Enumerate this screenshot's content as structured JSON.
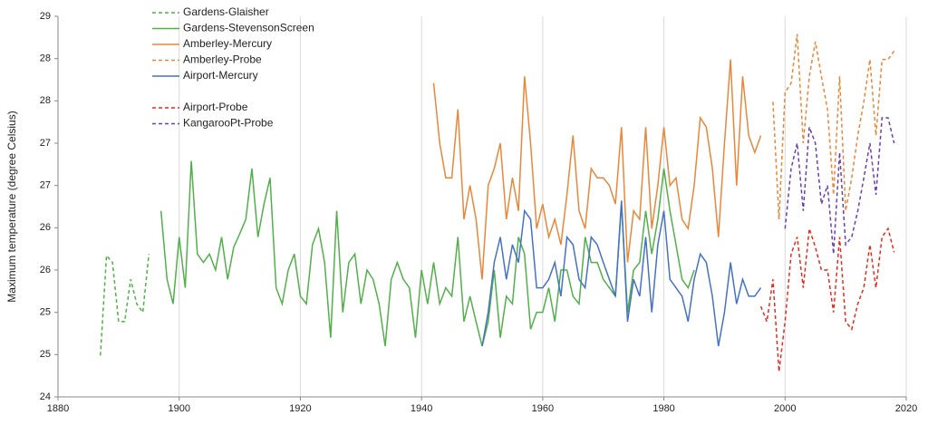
{
  "chart_data": {
    "type": "line",
    "y_label": "Maximum temperature (degree Celsius)",
    "xlim": [
      1880,
      2020
    ],
    "xticks": [
      1880,
      1900,
      1920,
      1940,
      1960,
      1980,
      2000,
      2020
    ],
    "ylim": [
      24,
      28.5
    ],
    "yticks": [
      {
        "value": 24,
        "label": "24"
      },
      {
        "value": 24.5,
        "label": "25"
      },
      {
        "value": 25,
        "label": "25"
      },
      {
        "value": 25.5,
        "label": "26"
      },
      {
        "value": 26,
        "label": "26"
      },
      {
        "value": 26.5,
        "label": "27"
      },
      {
        "value": 27,
        "label": "27"
      },
      {
        "value": 27.5,
        "label": "28"
      },
      {
        "value": 28,
        "label": "28"
      },
      {
        "value": 28.5,
        "label": "29"
      }
    ],
    "grid": true,
    "legend": "upper-left",
    "series": [
      {
        "name": "Gardens-Glaisher",
        "color": "#52b04a",
        "dashed": true,
        "x": [
          1887,
          1888,
          1889,
          1890,
          1891,
          1892,
          1893,
          1894,
          1895
        ],
        "values": [
          24.49,
          25.67,
          25.59,
          24.89,
          24.89,
          25.39,
          25.1,
          25.0,
          25.69
        ]
      },
      {
        "name": "Gardens-StevensonScreen",
        "color": "#52b04a",
        "dashed": false,
        "x": [
          1897,
          1898,
          1899,
          1900,
          1901,
          1902,
          1903,
          1904,
          1905,
          1906,
          1907,
          1908,
          1909,
          1910,
          1911,
          1912,
          1913,
          1914,
          1915,
          1916,
          1917,
          1918,
          1919,
          1920,
          1921,
          1922,
          1923,
          1924,
          1925,
          1926,
          1927,
          1928,
          1929,
          1930,
          1931,
          1932,
          1933,
          1934,
          1935,
          1936,
          1937,
          1938,
          1939,
          1940,
          1941,
          1942,
          1943,
          1944,
          1945,
          1946,
          1947,
          1948,
          1949,
          1950,
          1951,
          1952,
          1953,
          1954,
          1955,
          1956,
          1957,
          1958,
          1959,
          1960,
          1961,
          1962,
          1963,
          1964,
          1965,
          1966,
          1967,
          1968,
          1969,
          1970,
          1971,
          1972,
          1973,
          1974,
          1975,
          1976,
          1977,
          1978,
          1979,
          1980,
          1981,
          1982,
          1983,
          1984,
          1985
        ],
        "values": [
          26.2,
          25.39,
          25.1,
          25.89,
          25.29,
          26.79,
          25.69,
          25.59,
          25.69,
          25.5,
          25.89,
          25.39,
          25.77,
          25.93,
          26.1,
          26.7,
          25.89,
          26.28,
          26.59,
          25.29,
          25.1,
          25.5,
          25.69,
          25.19,
          25.1,
          25.8,
          25.99,
          25.59,
          24.7,
          26.2,
          25.0,
          25.59,
          25.69,
          25.1,
          25.5,
          25.39,
          25.1,
          24.6,
          25.39,
          25.59,
          25.39,
          25.29,
          24.7,
          25.5,
          25.1,
          25.59,
          25.1,
          25.29,
          25.19,
          25.89,
          24.89,
          25.19,
          24.89,
          24.6,
          24.89,
          25.5,
          24.7,
          25.19,
          25.1,
          25.89,
          25.69,
          24.8,
          25.0,
          25.0,
          25.29,
          24.89,
          25.5,
          25.5,
          25.19,
          25.1,
          25.89,
          25.59,
          25.59,
          25.39,
          25.29,
          25.19,
          26.28,
          25.0,
          25.5,
          25.59,
          26.2,
          25.69,
          26.1,
          26.7,
          26.2,
          25.8,
          25.39,
          25.29,
          25.5
        ]
      },
      {
        "name": "Amberley-Mercury",
        "color": "#e8873a",
        "dashed": false,
        "x": [
          1942,
          1943,
          1944,
          1945,
          1946,
          1947,
          1948,
          1949,
          1950,
          1951,
          1952,
          1953,
          1954,
          1955,
          1956,
          1957,
          1958,
          1959,
          1960,
          1961,
          1962,
          1963,
          1964,
          1965,
          1966,
          1967,
          1968,
          1969,
          1970,
          1971,
          1972,
          1973,
          1974,
          1975,
          1976,
          1977,
          1978,
          1979,
          1980,
          1981,
          1982,
          1983,
          1984,
          1985,
          1986,
          1987,
          1988,
          1989,
          1990,
          1991,
          1992,
          1993,
          1994,
          1995,
          1996
        ],
        "values": [
          27.71,
          27.0,
          26.59,
          26.59,
          27.4,
          26.1,
          26.5,
          26.1,
          25.39,
          26.5,
          26.7,
          27.0,
          26.1,
          26.59,
          26.2,
          27.79,
          27.0,
          25.99,
          26.28,
          25.89,
          26.1,
          25.8,
          26.39,
          27.09,
          26.2,
          25.99,
          26.7,
          26.59,
          26.59,
          26.5,
          26.28,
          27.19,
          25.59,
          26.2,
          26.1,
          27.19,
          25.99,
          26.5,
          27.19,
          26.5,
          26.59,
          26.1,
          25.99,
          26.5,
          27.3,
          27.19,
          26.7,
          25.89,
          27.0,
          27.99,
          26.5,
          27.79,
          27.09,
          26.89,
          27.09
        ]
      },
      {
        "name": "Amberley-Probe",
        "color": "#e8873a",
        "dashed": true,
        "x": [
          1998,
          1999,
          2000,
          2001,
          2002,
          2003,
          2004,
          2005,
          2006,
          2007,
          2008,
          2009,
          2010,
          2011,
          2012,
          2013,
          2014,
          2015,
          2016,
          2017,
          2018
        ],
        "values": [
          27.49,
          26.1,
          27.6,
          27.71,
          28.29,
          27.0,
          27.79,
          28.2,
          27.79,
          27.4,
          26.39,
          27.79,
          26.2,
          26.59,
          27.09,
          27.49,
          27.99,
          27.09,
          27.99,
          27.99,
          28.09
        ]
      },
      {
        "name": "Airport-Mercury",
        "color": "#4472c4",
        "dashed": false,
        "x": [
          1950,
          1951,
          1952,
          1953,
          1954,
          1955,
          1956,
          1957,
          1958,
          1959,
          1960,
          1961,
          1962,
          1963,
          1964,
          1965,
          1966,
          1967,
          1968,
          1969,
          1970,
          1971,
          1972,
          1973,
          1974,
          1975,
          1976,
          1977,
          1978,
          1979,
          1980,
          1981,
          1982,
          1983,
          1984,
          1985,
          1986,
          1987,
          1988,
          1989,
          1990,
          1991,
          1992,
          1993,
          1994,
          1995,
          1996
        ],
        "values": [
          24.6,
          25.0,
          25.59,
          25.89,
          25.39,
          25.8,
          25.59,
          26.2,
          26.1,
          25.29,
          25.29,
          25.39,
          25.59,
          25.19,
          25.89,
          25.8,
          25.39,
          25.29,
          25.89,
          25.8,
          25.59,
          25.39,
          25.19,
          26.32,
          24.89,
          25.39,
          25.19,
          25.89,
          25.0,
          25.8,
          26.2,
          25.39,
          25.29,
          25.19,
          24.89,
          25.39,
          25.69,
          25.59,
          25.19,
          24.6,
          25.0,
          25.59,
          25.1,
          25.39,
          25.19,
          25.19,
          25.29
        ]
      },
      {
        "name": "Airport-Probe",
        "color": "#e32b22",
        "dashed": true,
        "x": [
          1996,
          1997,
          1998,
          1999,
          2000,
          2001,
          2002,
          2003,
          2004,
          2005,
          2006,
          2007,
          2008,
          2009,
          2010,
          2011,
          2012,
          2013,
          2014,
          2015,
          2016,
          2017,
          2018
        ],
        "values": [
          25.07,
          24.89,
          25.39,
          24.3,
          24.89,
          25.69,
          25.89,
          25.29,
          25.99,
          25.77,
          25.5,
          25.5,
          25.0,
          25.89,
          24.89,
          24.8,
          25.1,
          25.29,
          25.8,
          25.29,
          25.89,
          25.99,
          25.71
        ]
      },
      {
        "name": "KangarooPt-Probe",
        "color": "#6a3fb0",
        "dashed": true,
        "x": [
          2000,
          2001,
          2002,
          2003,
          2004,
          2005,
          2006,
          2007,
          2008,
          2009,
          2010,
          2011,
          2012,
          2013,
          2014,
          2015,
          2016,
          2017,
          2018
        ],
        "values": [
          25.99,
          26.7,
          27.0,
          26.2,
          27.19,
          27.0,
          26.28,
          26.5,
          25.69,
          26.89,
          25.8,
          25.89,
          26.2,
          26.59,
          27.0,
          26.39,
          27.3,
          27.3,
          27.0
        ]
      }
    ]
  }
}
